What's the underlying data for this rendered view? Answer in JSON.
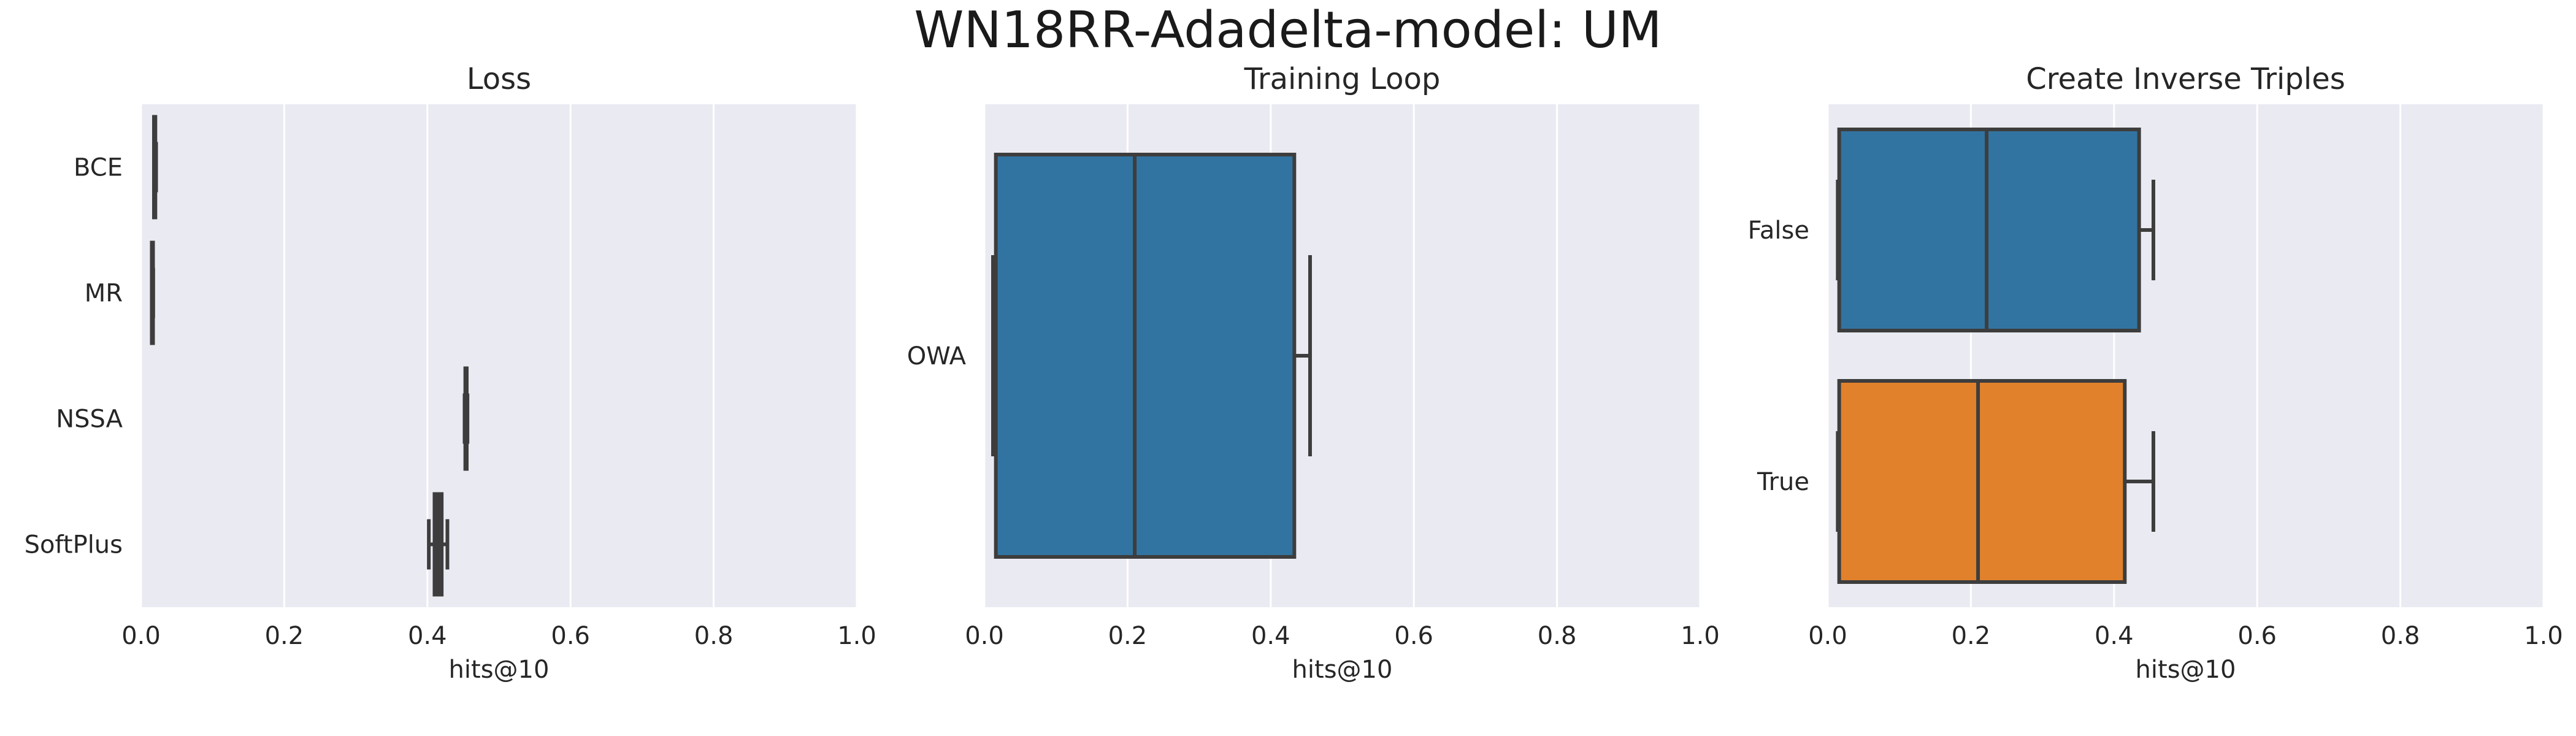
{
  "title": "WN18RR-Adadelta-model: UM",
  "colors": {
    "axes_bg": "#eaeaf2",
    "grid": "#ffffff",
    "box_line": "#3d3d3d",
    "blue": "#3274a1",
    "orange": "#e1812c",
    "brown": "#8c5a4c"
  },
  "chart_data": [
    {
      "type": "box",
      "orientation": "horizontal",
      "title": "Loss",
      "xlabel": "hits@10",
      "xlim": [
        0,
        1
      ],
      "xticks": [
        0,
        0.2,
        0.4,
        0.6,
        0.8,
        1
      ],
      "xtick_labels": [
        "0.0",
        "0.2",
        "0.4",
        "0.6",
        "0.8",
        "1.0"
      ],
      "grid": true,
      "categories": [
        "BCE",
        "MR",
        "NSSA",
        "SoftPlus"
      ],
      "boxes": [
        {
          "category": "BCE",
          "min": 0.018,
          "q1": 0.018,
          "median": 0.019,
          "q3": 0.02,
          "max": 0.021,
          "color": "#3274a1"
        },
        {
          "category": "MR",
          "min": 0.015,
          "q1": 0.015,
          "median": 0.016,
          "q3": 0.016,
          "max": 0.017,
          "color": "#e1812c"
        },
        {
          "category": "NSSA",
          "min": 0.452,
          "q1": 0.453,
          "median": 0.454,
          "q3": 0.455,
          "max": 0.456,
          "color": "#3a923a"
        },
        {
          "category": "SoftPlus",
          "min": 0.402,
          "q1": 0.41,
          "median": 0.415,
          "q3": 0.42,
          "max": 0.428,
          "color": "#8c5a4c"
        }
      ]
    },
    {
      "type": "box",
      "orientation": "horizontal",
      "title": "Training Loop",
      "xlabel": "hits@10",
      "xlim": [
        0,
        1
      ],
      "xticks": [
        0,
        0.2,
        0.4,
        0.6,
        0.8,
        1
      ],
      "xtick_labels": [
        "0.0",
        "0.2",
        "0.4",
        "0.6",
        "0.8",
        "1.0"
      ],
      "grid": true,
      "categories": [
        "OWA"
      ],
      "boxes": [
        {
          "category": "OWA",
          "min": 0.012,
          "q1": 0.016,
          "median": 0.21,
          "q3": 0.433,
          "max": 0.455,
          "color": "#3274a1"
        }
      ]
    },
    {
      "type": "box",
      "orientation": "horizontal",
      "title": "Create Inverse Triples",
      "xlabel": "hits@10",
      "xlim": [
        0,
        1
      ],
      "xticks": [
        0,
        0.2,
        0.4,
        0.6,
        0.8,
        1
      ],
      "xtick_labels": [
        "0.0",
        "0.2",
        "0.4",
        "0.6",
        "0.8",
        "1.0"
      ],
      "grid": true,
      "categories": [
        "False",
        "True"
      ],
      "boxes": [
        {
          "category": "False",
          "min": 0.014,
          "q1": 0.016,
          "median": 0.222,
          "q3": 0.435,
          "max": 0.455,
          "color": "#3274a1"
        },
        {
          "category": "True",
          "min": 0.014,
          "q1": 0.016,
          "median": 0.21,
          "q3": 0.415,
          "max": 0.455,
          "color": "#e1812c"
        }
      ]
    }
  ]
}
